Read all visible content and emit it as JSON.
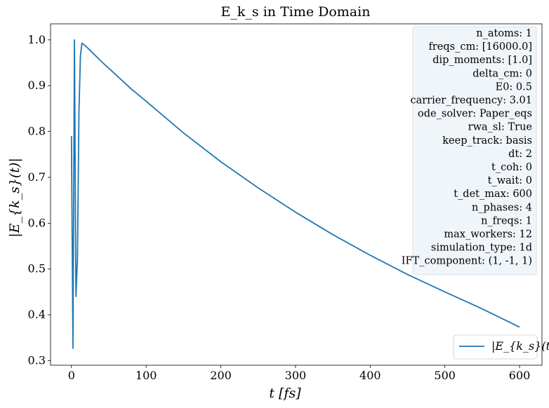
{
  "colors": {
    "line": "#1f77b4",
    "infobox_bg": "#f0f5fa",
    "infobox_edge": "#cfdbe6",
    "axes": "#000000"
  },
  "chart_data": {
    "type": "line",
    "title": "E_k_s in Time Domain",
    "xlabel": "t [fs]",
    "ylabel": "|E_{k_s}(t)|",
    "xlim": [
      -28,
      630
    ],
    "ylim": [
      0.29,
      1.035
    ],
    "xticks": [
      0,
      100,
      200,
      300,
      400,
      500,
      600
    ],
    "yticks": [
      0.3,
      0.4,
      0.5,
      0.6,
      0.7,
      0.8,
      0.9,
      1.0
    ],
    "xtick_labels": [
      "0",
      "100",
      "200",
      "300",
      "400",
      "500",
      "600"
    ],
    "ytick_labels": [
      "0.3",
      "0.4",
      "0.5",
      "0.6",
      "0.7",
      "0.8",
      "0.9",
      "1.0"
    ],
    "grid": false,
    "legend_position": "lower-right",
    "series": [
      {
        "name": "|E_{k_s}(t)|",
        "x": [
          0,
          2,
          4,
          6,
          8,
          10,
          12,
          14,
          20,
          40,
          60,
          80,
          100,
          150,
          200,
          250,
          300,
          350,
          400,
          450,
          500,
          550,
          600
        ],
        "y": [
          0.79,
          0.327,
          1.0,
          0.44,
          0.52,
          0.84,
          0.965,
          0.993,
          0.985,
          0.953,
          0.923,
          0.893,
          0.866,
          0.797,
          0.734,
          0.677,
          0.624,
          0.575,
          0.53,
          0.488,
          0.45,
          0.413,
          0.373
        ]
      }
    ],
    "info_box": [
      "n_atoms: 1",
      "freqs_cm: [16000.0]",
      "dip_moments: [1.0]",
      "delta_cm: 0",
      "E0: 0.5",
      "carrier_frequency: 3.01",
      "ode_solver: Paper_eqs",
      "rwa_sl: True",
      "keep_track: basis",
      "dt: 2",
      "t_coh: 0",
      "t_wait: 0",
      "t_det_max: 600",
      "n_phases: 4",
      "n_freqs: 1",
      "max_workers: 12",
      "simulation_type: 1d",
      "IFT_component: (1, -1, 1)"
    ]
  }
}
